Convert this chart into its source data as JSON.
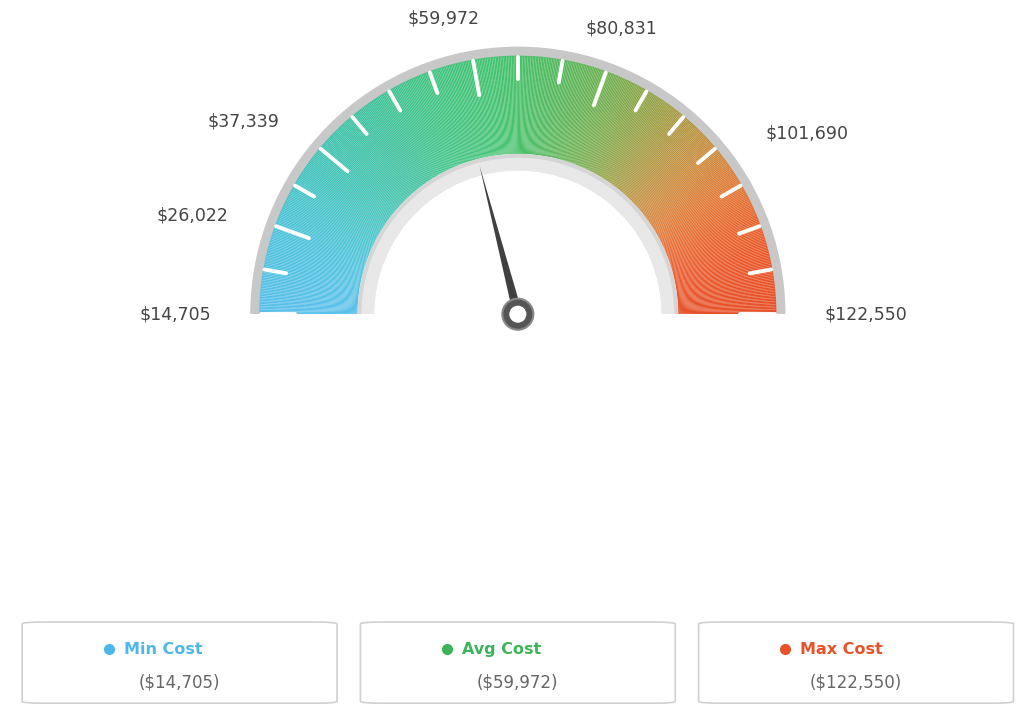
{
  "min_val": 14705,
  "max_val": 122550,
  "avg_val": 59972,
  "label_values": [
    14705,
    26022,
    37339,
    59972,
    80831,
    101690,
    122550
  ],
  "label_texts": [
    "$14,705",
    "$26,022",
    "$37,339",
    "$59,972",
    "$80,831",
    "$101,690",
    "$122,550"
  ],
  "color_stops": [
    [
      0.0,
      [
        91,
        192,
        235
      ]
    ],
    [
      0.1,
      [
        78,
        195,
        220
      ]
    ],
    [
      0.2,
      [
        65,
        195,
        185
      ]
    ],
    [
      0.3,
      [
        62,
        193,
        155
      ]
    ],
    [
      0.38,
      [
        65,
        195,
        130
      ]
    ],
    [
      0.46,
      [
        68,
        195,
        115
      ]
    ],
    [
      0.5,
      [
        72,
        193,
        105
      ]
    ],
    [
      0.55,
      [
        85,
        185,
        95
      ]
    ],
    [
      0.62,
      [
        115,
        175,
        80
      ]
    ],
    [
      0.68,
      [
        148,
        162,
        70
      ]
    ],
    [
      0.73,
      [
        178,
        150,
        65
      ]
    ],
    [
      0.78,
      [
        205,
        138,
        60
      ]
    ],
    [
      0.83,
      [
        225,
        120,
        52
      ]
    ],
    [
      0.88,
      [
        232,
        100,
        45
      ]
    ],
    [
      0.93,
      [
        234,
        88,
        42
      ]
    ],
    [
      1.0,
      [
        230,
        80,
        40
      ]
    ]
  ],
  "legend": {
    "min_label": "Min Cost",
    "avg_label": "Avg Cost",
    "max_label": "Max Cost",
    "min_value": "($14,705)",
    "avg_value": "($59,972)",
    "max_value": "($122,550)",
    "min_color": "#4db8e8",
    "avg_color": "#3db35a",
    "max_color": "#e8522a"
  },
  "background_color": "#ffffff"
}
